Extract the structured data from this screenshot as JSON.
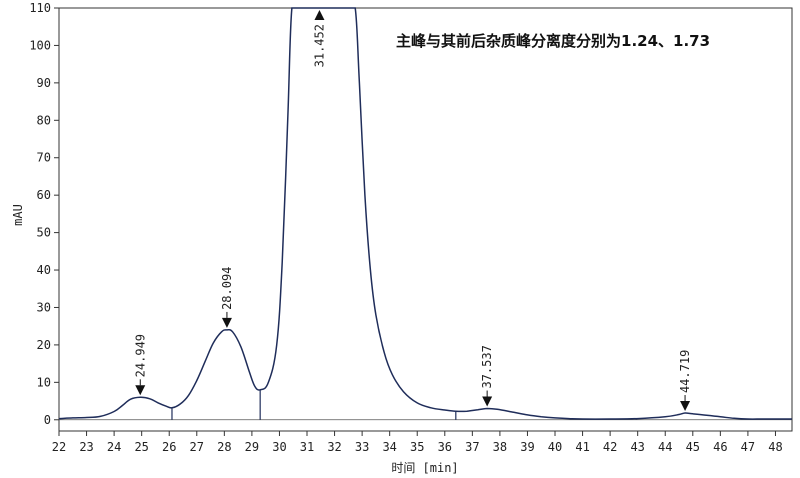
{
  "chart_data": {
    "type": "line",
    "title": "",
    "annotation": "主峰与其前后杂质峰分离度分别为1.24、1.73",
    "xlabel": "时间 [min]",
    "ylabel": "mAU",
    "xlim": [
      22,
      48.6
    ],
    "ylim": [
      -3,
      110
    ],
    "x_ticks": [
      22,
      23,
      24,
      25,
      26,
      27,
      28,
      29,
      30,
      31,
      32,
      33,
      34,
      35,
      36,
      37,
      38,
      39,
      40,
      41,
      42,
      43,
      44,
      45,
      46,
      47,
      48
    ],
    "y_ticks": [
      0,
      10,
      20,
      30,
      40,
      50,
      60,
      70,
      80,
      90,
      100,
      110
    ],
    "grid": false,
    "peaks": [
      {
        "label": "24.949",
        "x": 24.949,
        "y": 6
      },
      {
        "label": "28.094",
        "x": 28.094,
        "y": 24
      },
      {
        "label": "31.452",
        "x": 31.452,
        "y": 110
      },
      {
        "label": "37.537",
        "x": 37.537,
        "y": 3
      },
      {
        "label": "44.719",
        "x": 44.719,
        "y": 1.8
      }
    ],
    "integration_marks": [
      26.1,
      29.3,
      36.4
    ],
    "series": [
      {
        "x": [
          22.0,
          22.5,
          23.0,
          23.5,
          24.0,
          24.3,
          24.6,
          24.949,
          25.3,
          25.6,
          25.9,
          26.1,
          26.4,
          26.7,
          27.0,
          27.3,
          27.6,
          27.9,
          28.094,
          28.3,
          28.6,
          28.9,
          29.1,
          29.3,
          29.6,
          29.9,
          30.1,
          30.3,
          30.45,
          30.7,
          31.0,
          31.452,
          32.0,
          32.5,
          32.75,
          32.9,
          33.1,
          33.3,
          33.5,
          33.8,
          34.1,
          34.5,
          35.0,
          35.5,
          36.0,
          36.4,
          36.8,
          37.2,
          37.537,
          37.9,
          38.5,
          39.0,
          39.5,
          40.0,
          40.5,
          41.0,
          42.0,
          43.0,
          44.0,
          44.5,
          44.719,
          45.0,
          45.5,
          46.0,
          46.5,
          47.0,
          47.5,
          48.0,
          48.6
        ],
        "y": [
          0.3,
          0.5,
          0.6,
          0.9,
          2.2,
          3.8,
          5.5,
          6.0,
          5.6,
          4.5,
          3.6,
          3.2,
          4.2,
          6.5,
          10.5,
          15.5,
          20.5,
          23.5,
          24.0,
          23.5,
          19.5,
          13.0,
          9.0,
          8.0,
          10.0,
          20.0,
          42.0,
          80.0,
          110,
          110,
          110,
          110,
          110,
          110,
          110,
          90.0,
          60.0,
          40.0,
          28.0,
          18.0,
          12.0,
          7.5,
          4.5,
          3.2,
          2.6,
          2.3,
          2.3,
          2.7,
          3.0,
          2.8,
          2.0,
          1.3,
          0.8,
          0.5,
          0.3,
          0.2,
          0.2,
          0.3,
          0.8,
          1.4,
          1.8,
          1.6,
          1.2,
          0.8,
          0.4,
          0.2,
          0.2,
          0.2,
          0.2
        ]
      }
    ]
  }
}
